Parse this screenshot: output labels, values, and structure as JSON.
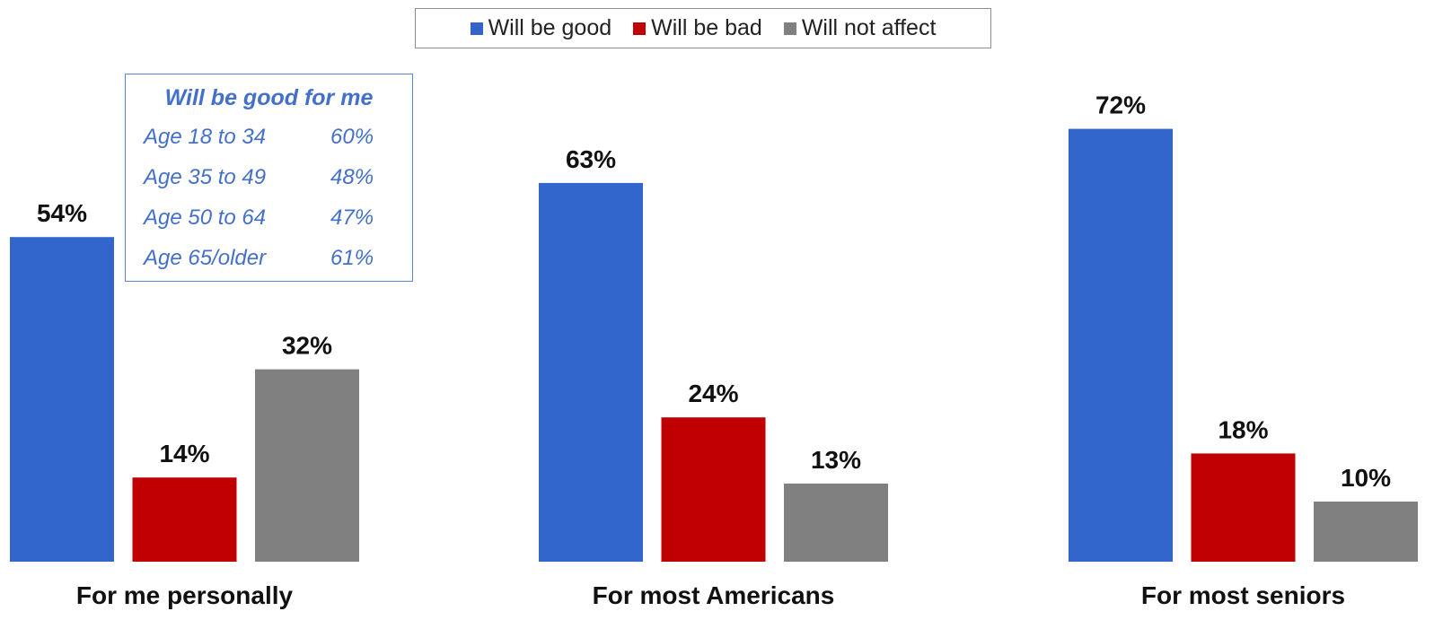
{
  "chart_data": {
    "type": "bar",
    "categories": [
      "For me personally",
      "For most Americans",
      "For most seniors"
    ],
    "series": [
      {
        "name": "Will be good",
        "color": "#3366cc",
        "values": [
          54,
          63,
          72
        ]
      },
      {
        "name": "Will be bad",
        "color": "#c00000",
        "values": [
          14,
          24,
          18
        ]
      },
      {
        "name": "Will not affect",
        "color": "#808080",
        "values": [
          32,
          13,
          10
        ]
      }
    ],
    "value_suffix": "%",
    "ylim": [
      0,
      100
    ],
    "legend_position": "top-center",
    "grid": false
  },
  "inset": {
    "title": "Will be good for me",
    "rows": [
      {
        "label": "Age 18 to 34",
        "value": "60%"
      },
      {
        "label": "Age 35 to 49",
        "value": "48%"
      },
      {
        "label": "Age 50 to 64",
        "value": "47%"
      },
      {
        "label": "Age 65/older",
        "value": "61%"
      }
    ]
  }
}
